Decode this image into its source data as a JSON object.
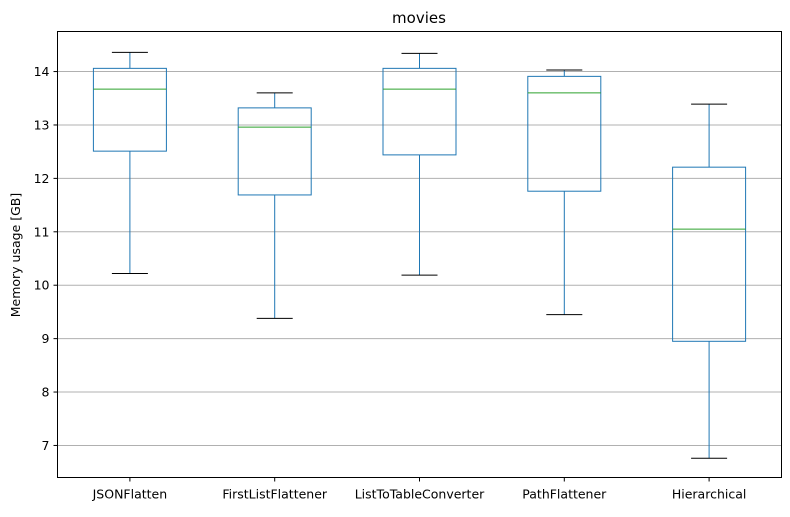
{
  "chart_data": {
    "type": "box",
    "title": "movies",
    "xlabel": "",
    "ylabel": "Memory usage [GB]",
    "ylim": [
      6.4,
      14.75
    ],
    "yticks": [
      7,
      8,
      9,
      10,
      11,
      12,
      13,
      14
    ],
    "grid": "horizontal",
    "colors": {
      "box": "#1f77b4",
      "median": "#2ca02c",
      "whisker_cap": "#000000",
      "grid": "#b0b0b0"
    },
    "categories": [
      "JSONFlatten",
      "FirstListFlattener",
      "ListToTableConverter",
      "PathFlattener",
      "Hierarchical"
    ],
    "boxes": [
      {
        "name": "JSONFlatten",
        "whislo": 10.22,
        "q1": 12.51,
        "med": 13.67,
        "q3": 14.06,
        "whishi": 14.36
      },
      {
        "name": "FirstListFlattener",
        "whislo": 9.38,
        "q1": 11.69,
        "med": 12.96,
        "q3": 13.32,
        "whishi": 13.6
      },
      {
        "name": "ListToTableConverter",
        "whislo": 10.19,
        "q1": 12.44,
        "med": 13.67,
        "q3": 14.06,
        "whishi": 14.34
      },
      {
        "name": "PathFlattener",
        "whislo": 9.45,
        "q1": 11.76,
        "med": 13.6,
        "q3": 13.91,
        "whishi": 14.03
      },
      {
        "name": "Hierarchical",
        "whislo": 6.76,
        "q1": 8.95,
        "med": 11.05,
        "q3": 12.21,
        "whishi": 13.39
      }
    ]
  }
}
